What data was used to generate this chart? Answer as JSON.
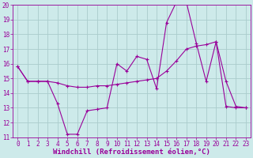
{
  "xlabel": "Windchill (Refroidissement éolien,°C)",
  "bg_color": "#cdeaea",
  "grid_color": "#aacccc",
  "line_color": "#990099",
  "xlim": [
    -0.5,
    23.5
  ],
  "ylim": [
    11,
    20
  ],
  "xticks": [
    0,
    1,
    2,
    3,
    4,
    5,
    6,
    7,
    8,
    9,
    10,
    11,
    12,
    13,
    14,
    15,
    16,
    17,
    18,
    19,
    20,
    21,
    22,
    23
  ],
  "yticks": [
    11,
    12,
    13,
    14,
    15,
    16,
    17,
    18,
    19,
    20
  ],
  "series1_x": [
    0,
    1,
    2,
    3,
    4,
    5,
    6,
    7,
    8,
    9,
    10,
    11,
    12,
    13,
    14,
    15,
    16,
    17,
    18,
    19,
    20,
    21,
    22,
    23
  ],
  "series1_y": [
    15.8,
    14.8,
    14.8,
    14.8,
    13.3,
    11.2,
    11.2,
    12.8,
    12.9,
    13.0,
    16.0,
    15.5,
    16.5,
    16.3,
    14.3,
    18.8,
    20.2,
    20.2,
    17.4,
    14.8,
    17.5,
    13.1,
    13.0,
    13.0
  ],
  "series2_x": [
    0,
    1,
    2,
    3,
    4,
    5,
    6,
    7,
    8,
    9,
    10,
    11,
    12,
    13,
    14,
    15,
    16,
    17,
    18,
    19,
    20,
    21,
    22,
    23
  ],
  "series2_y": [
    15.8,
    14.8,
    14.8,
    14.8,
    14.7,
    14.5,
    14.4,
    14.4,
    14.5,
    14.5,
    14.6,
    14.7,
    14.8,
    14.9,
    15.0,
    15.5,
    16.2,
    17.0,
    17.2,
    17.3,
    17.5,
    14.8,
    13.1,
    13.0
  ],
  "tick_fontsize": 5.5,
  "xlabel_fontsize": 6.5
}
